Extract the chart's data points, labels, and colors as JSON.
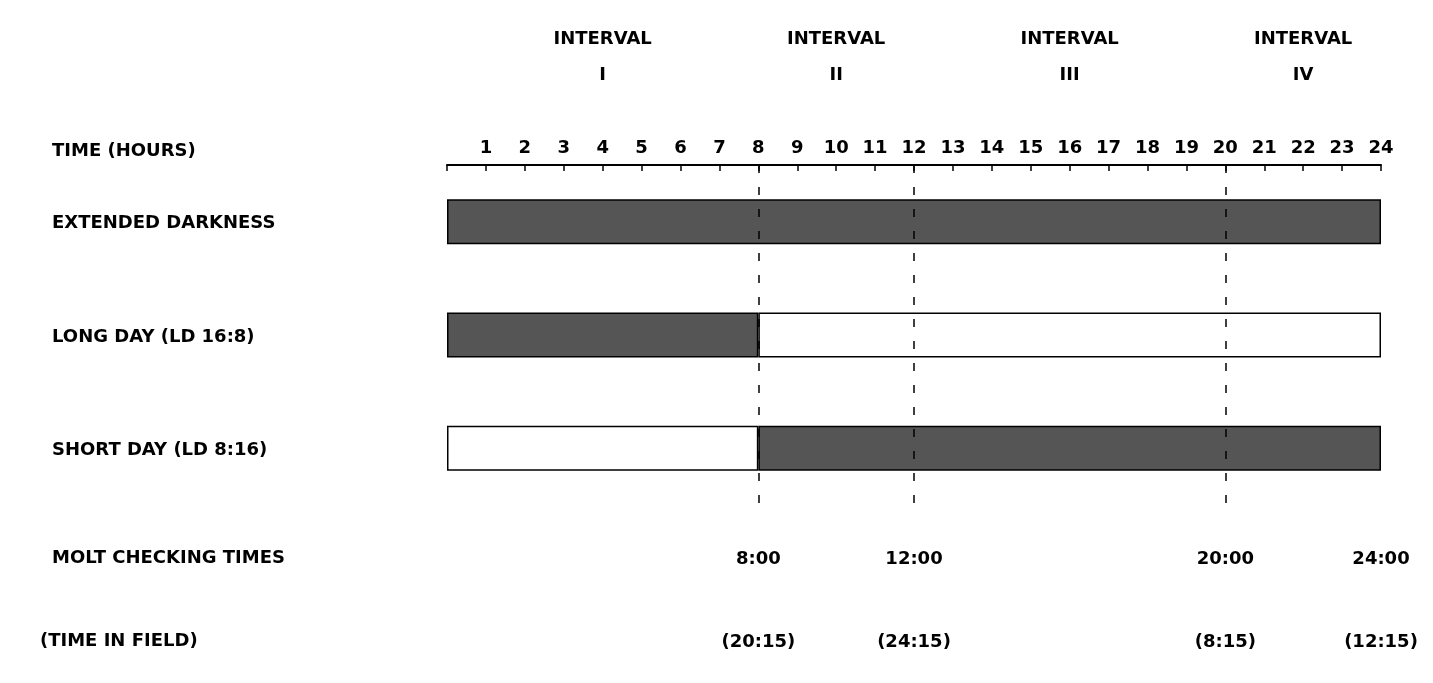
{
  "chart_data": {
    "type": "bar",
    "orientation": "horizontal",
    "stacked": true,
    "categories": [
      "EXTENDED DARKNESS",
      "LONG DAY (LD 16:8)",
      "SHORT DAY (LD 8:16)"
    ],
    "series": [
      {
        "values": [
          24,
          8,
          8
        ],
        "colors": [
          "#555555",
          "#555555",
          "#ffffff"
        ]
      },
      {
        "values": [
          null,
          16,
          16
        ],
        "colors": [
          "#ffffff",
          "#ffffff",
          "#555555"
        ]
      }
    ],
    "xlabel": "TIME (HOURS)",
    "xlim": [
      0,
      24
    ],
    "xticks": [
      {
        "value": 0,
        "label": null
      },
      1,
      2,
      3,
      4,
      5,
      6,
      7,
      8,
      9,
      10,
      11,
      12,
      13,
      14,
      15,
      16,
      17,
      18,
      19,
      20,
      21,
      22,
      23,
      24
    ],
    "ref_lines": [
      {
        "axis": "x",
        "value": 8,
        "label": "8:00"
      },
      {
        "axis": "x",
        "value": 12,
        "label": "12:00"
      },
      {
        "axis": "x",
        "value": 20,
        "label": "20:00"
      }
    ],
    "line_style": "dashed",
    "annotations": [
      "INTERVAL\nI",
      "INTERVAL\nII",
      "INTERVAL\nIII",
      "INTERVAL\nIV",
      "MOLT CHECKING TIMES",
      "(TIME IN FIELD)",
      "24:00",
      "(20:15)",
      "(24:15)",
      "(8:15)",
      "(12:15)"
    ]
  }
}
